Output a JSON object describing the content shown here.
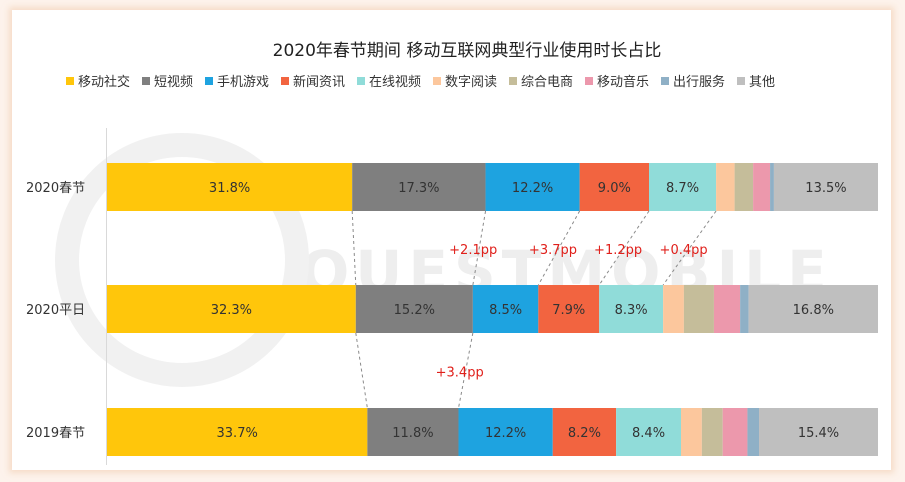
{
  "chart_data": {
    "type": "bar",
    "orientation": "horizontal",
    "stacked": "100%",
    "title": "2020年春节期间 移动互联网典型行业使用时长占比",
    "legend_position": "top",
    "watermark": "QUESTMOBILE",
    "categories": [
      "2020春节",
      "2020平日",
      "2019春节"
    ],
    "series": [
      {
        "name": "移动社交",
        "color": "#ffc60b",
        "values": [
          31.8,
          32.3,
          33.7
        ]
      },
      {
        "name": "短视频",
        "color": "#7f7f7f",
        "values": [
          17.3,
          15.2,
          11.8
        ]
      },
      {
        "name": "手机游戏",
        "color": "#1ea3e0",
        "values": [
          12.2,
          8.5,
          12.2
        ]
      },
      {
        "name": "新闻资讯",
        "color": "#f26440",
        "values": [
          9.0,
          7.9,
          8.2
        ]
      },
      {
        "name": "在线视频",
        "color": "#90dcd9",
        "values": [
          8.7,
          8.3,
          8.4
        ]
      },
      {
        "name": "数字阅读",
        "color": "#fcc79d",
        "values": [
          2.4,
          2.7,
          2.7
        ]
      },
      {
        "name": "综合电商",
        "color": "#c5bd9a",
        "values": [
          2.4,
          3.9,
          2.7
        ]
      },
      {
        "name": "移动音乐",
        "color": "#ec98ac",
        "values": [
          2.2,
          3.4,
          3.2
        ]
      },
      {
        "name": "出行服务",
        "color": "#8fb0c6",
        "values": [
          0.5,
          1.1,
          1.5
        ]
      },
      {
        "name": "其他",
        "color": "#bfbfbf",
        "values": [
          13.5,
          16.8,
          15.4
        ]
      }
    ],
    "value_labels": [
      [
        "31.8%",
        "17.3%",
        "12.2%",
        "9.0%",
        "8.7%",
        "",
        "",
        "",
        "",
        "13.5%"
      ],
      [
        "32.3%",
        "15.2%",
        "8.5%",
        "7.9%",
        "8.3%",
        "",
        "",
        "",
        "",
        "16.8%"
      ],
      [
        "33.7%",
        "11.8%",
        "12.2%",
        "8.2%",
        "8.4%",
        "",
        "",
        "",
        "",
        "15.4%"
      ]
    ],
    "annotations": [
      {
        "text": "+2.1pp",
        "between": [
          0,
          1
        ],
        "series": "短视频",
        "color": "#e0201b"
      },
      {
        "text": "+3.7pp",
        "between": [
          0,
          1
        ],
        "series": "手机游戏",
        "color": "#e0201b"
      },
      {
        "text": "+1.2pp",
        "between": [
          0,
          1
        ],
        "series": "新闻资讯",
        "color": "#e0201b"
      },
      {
        "text": "+0.4pp",
        "between": [
          0,
          1
        ],
        "series": "在线视频",
        "color": "#e0201b"
      },
      {
        "text": "+3.4pp",
        "between": [
          1,
          2
        ],
        "series": "短视频",
        "color": "#e0201b"
      }
    ]
  }
}
